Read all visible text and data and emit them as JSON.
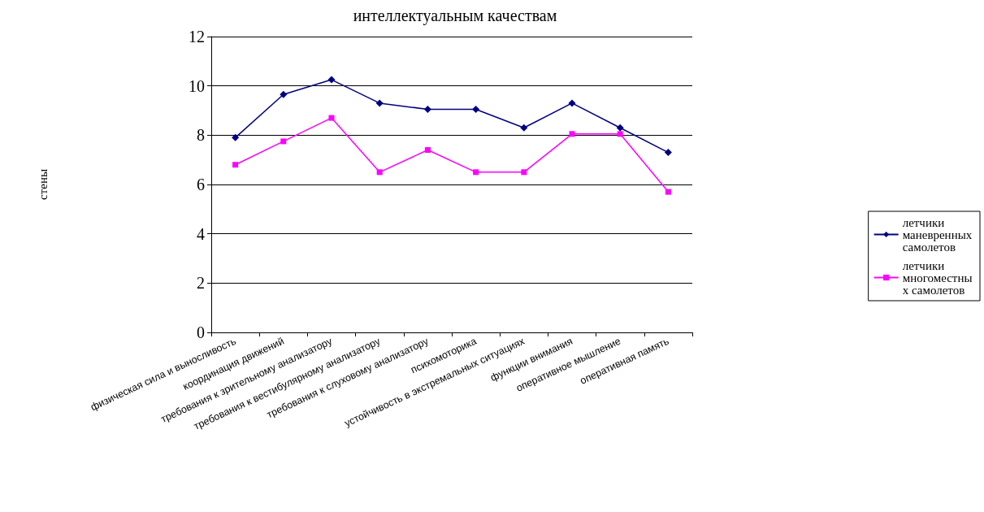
{
  "chart_data": {
    "type": "line",
    "title": "интеллектуальным качествам",
    "ylabel": "стены",
    "categories": [
      "физическая сила и выносливость",
      "координация движений",
      "требования к зрительному анализатору",
      "требования к вестибулярному анализатору",
      "требования к слуховому анализатору",
      "психомоторика",
      "устойчивость в экстремальных ситуациях",
      "функции внимания",
      "оперативное мышление",
      "оперативная память"
    ],
    "series": [
      {
        "name": "летчики маневренных самолетов",
        "color": "#000080",
        "marker": "diamond",
        "values": [
          7.9,
          9.65,
          10.25,
          9.3,
          9.05,
          9.05,
          8.3,
          9.3,
          8.3,
          7.3
        ]
      },
      {
        "name": "летчики многоместных самолетов",
        "color": "#ff00ff",
        "marker": "square",
        "values": [
          6.8,
          7.75,
          8.7,
          6.5,
          7.4,
          6.5,
          6.5,
          8.05,
          8.05,
          5.7
        ]
      }
    ],
    "ylim": [
      0,
      12
    ],
    "yticks": [
      0,
      2,
      4,
      6,
      8,
      10,
      12
    ],
    "grid": "y",
    "legend": "right"
  }
}
